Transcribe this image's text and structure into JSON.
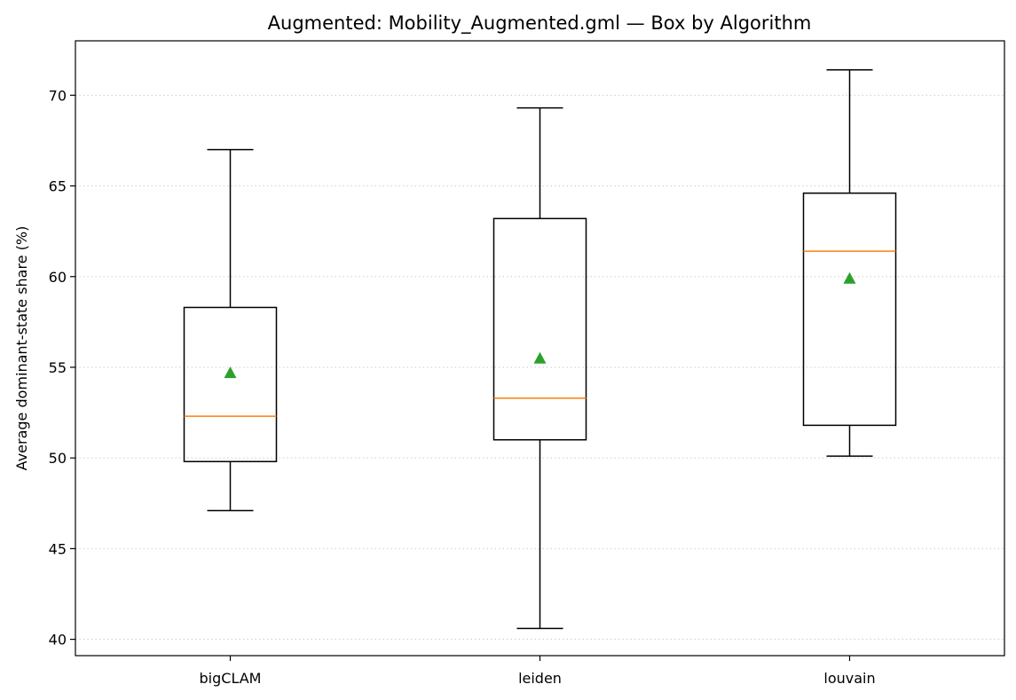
{
  "chart_data": {
    "type": "box",
    "title": "Augmented: Mobility_Augmented.gml — Box by Algorithm",
    "xlabel": "",
    "ylabel": "Average dominant-state share (%)",
    "ylim": [
      39.1,
      73.0
    ],
    "yticks": [
      40,
      45,
      50,
      55,
      60,
      65,
      70
    ],
    "grid": "y-dotted",
    "categories": [
      "bigCLAM",
      "leiden",
      "louvain"
    ],
    "boxes": [
      {
        "category": "bigCLAM",
        "whisker_low": 47.1,
        "q1": 49.8,
        "median": 52.3,
        "q3": 58.3,
        "whisker_high": 67.0,
        "mean": 54.7
      },
      {
        "category": "leiden",
        "whisker_low": 40.6,
        "q1": 51.0,
        "median": 53.3,
        "q3": 63.2,
        "whisker_high": 69.3,
        "mean": 55.5
      },
      {
        "category": "louvain",
        "whisker_low": 50.1,
        "q1": 51.8,
        "median": 61.4,
        "q3": 64.6,
        "whisker_high": 71.4,
        "mean": 59.9
      }
    ],
    "colors": {
      "box": "#000000",
      "median": "#ff7f0e",
      "mean": "#2ca02c",
      "grid": "#cccccc"
    }
  }
}
